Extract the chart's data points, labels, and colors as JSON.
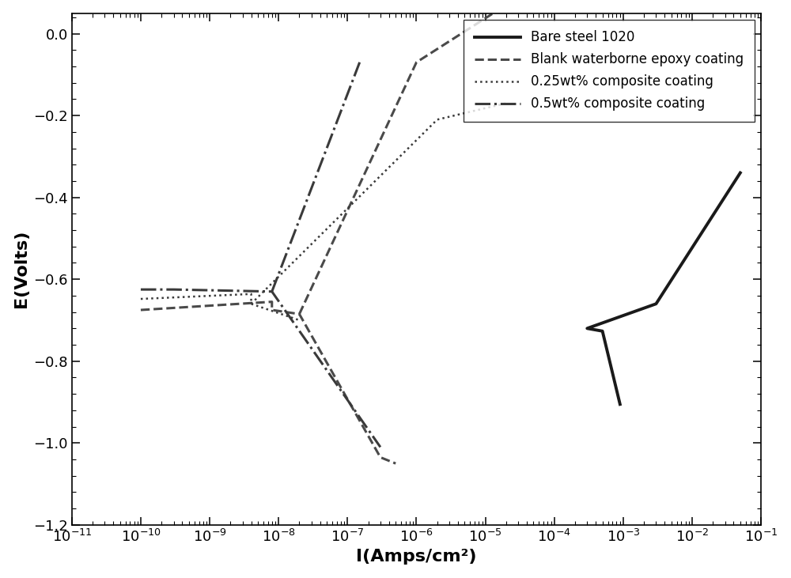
{
  "title": "",
  "xlabel": "I(Amps/cm²)",
  "ylabel": "E(Volts)",
  "xlim_log": [
    -11,
    -1
  ],
  "ylim": [
    -1.2,
    0.05
  ],
  "yticks": [
    0.0,
    -0.2,
    -0.4,
    -0.6,
    -0.8,
    -1.0,
    -1.2
  ],
  "background_color": "#ffffff",
  "legend_entries": [
    "Bare steel 1020",
    "Blank waterborne epoxy coating",
    "0.25wt% composite coating",
    "0.5wt% composite coating"
  ],
  "line_styles": [
    {
      "color": "#1a1a1a",
      "lw": 2.8,
      "ls": "-"
    },
    {
      "color": "#4a4a4a",
      "lw": 2.2,
      "ls": "--"
    },
    {
      "color": "#3a3a3a",
      "lw": 1.8,
      "ls": ":"
    },
    {
      "color": "#3a3a3a",
      "lw": 2.2,
      "ls": "-."
    }
  ]
}
